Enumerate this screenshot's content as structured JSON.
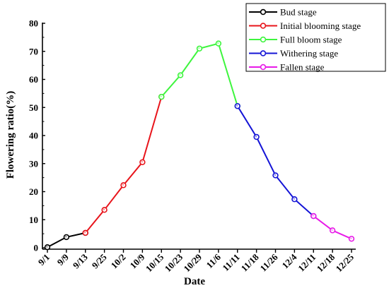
{
  "chart_data": {
    "type": "line",
    "title": "",
    "xlabel": "Date",
    "ylabel": "Flowering ratio(%)",
    "ylim": [
      0,
      80
    ],
    "yticks": [
      0,
      10,
      20,
      30,
      40,
      50,
      60,
      70,
      80
    ],
    "grid": false,
    "legend_position": "top-right",
    "categories": [
      "9/1",
      "9/9",
      "9/13",
      "9/25",
      "10/2",
      "10/9",
      "10/15",
      "10/23",
      "10/29",
      "11/6",
      "11/11",
      "11/18",
      "11/26",
      "12/4",
      "12/11",
      "12/18",
      "12/25"
    ],
    "series": [
      {
        "name": "Bud stage",
        "color": "#000000",
        "points": [
          [
            0,
            0.2
          ],
          [
            1,
            3.8
          ],
          [
            2,
            5.3
          ]
        ]
      },
      {
        "name": "Initial blooming stage",
        "color": "#e8141b",
        "points": [
          [
            2,
            5.3
          ],
          [
            3,
            13.5
          ],
          [
            4,
            22.3
          ],
          [
            5,
            30.5
          ],
          [
            6,
            53.8
          ]
        ]
      },
      {
        "name": "Full bloom stage",
        "color": "#3ef53e",
        "points": [
          [
            6,
            53.8
          ],
          [
            7,
            61.5
          ],
          [
            8,
            71.0
          ],
          [
            9,
            72.8
          ],
          [
            10,
            50.5
          ]
        ]
      },
      {
        "name": "Withering stage",
        "color": "#1414d6",
        "points": [
          [
            10,
            50.5
          ],
          [
            11,
            39.5
          ],
          [
            12,
            25.8
          ],
          [
            13,
            17.3
          ],
          [
            14,
            11.3
          ]
        ]
      },
      {
        "name": "Fallen stage",
        "color": "#e81ae8",
        "points": [
          [
            14,
            11.3
          ],
          [
            15,
            6.2
          ],
          [
            16,
            3.2
          ]
        ]
      }
    ]
  }
}
